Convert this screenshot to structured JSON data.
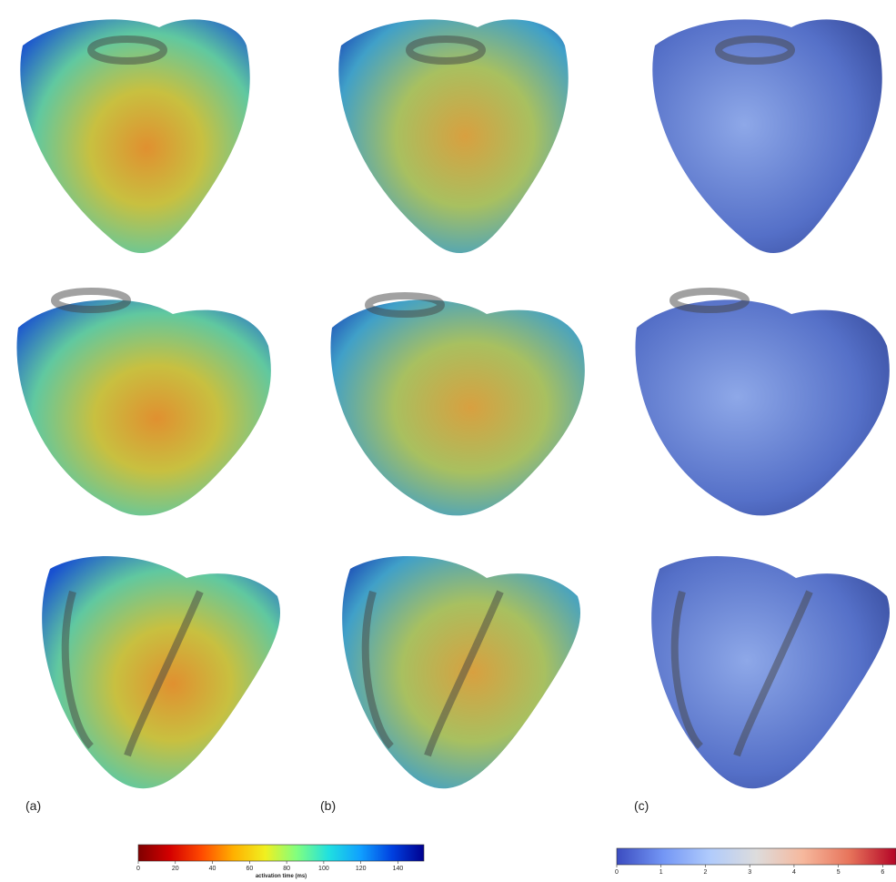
{
  "panels": [
    {
      "label": "(a)"
    },
    {
      "label": "(b)"
    },
    {
      "label": "(c)"
    }
  ],
  "colorbars": [
    {
      "label": "activation time (ms)",
      "lim": [
        0,
        154
      ],
      "ticks": [
        0,
        20,
        40,
        60,
        80,
        100,
        120,
        140
      ],
      "colors": [
        "#7f0000",
        "#d40000",
        "#ff4a00",
        "#ffb000",
        "#f0f020",
        "#80ff80",
        "#20e0e0",
        "#10a0ff",
        "#0040e0",
        "#00008f"
      ]
    },
    {
      "lim": [
        0,
        6.3
      ],
      "ticks": [
        0,
        1,
        2,
        3,
        4,
        5,
        6
      ],
      "colors": [
        "#3b4cc0",
        "#7396f5",
        "#b0cbfc",
        "#dddcdc",
        "#f6b89d",
        "#e7745b",
        "#b40426"
      ]
    }
  ]
}
